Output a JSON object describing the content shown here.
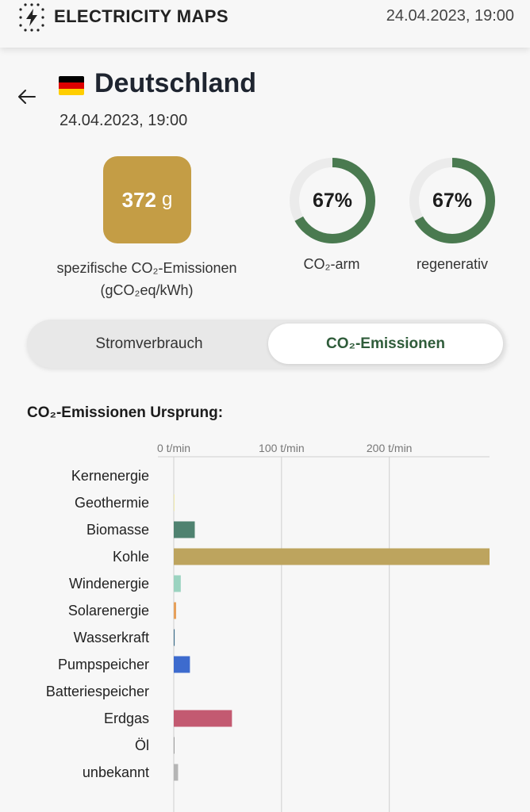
{
  "header": {
    "brand": "ELECTRICITY MAPS",
    "datetime": "24.04.2023, 19:00",
    "logo_icon": "lightning-bolt-icon"
  },
  "zone": {
    "name": "Deutschland",
    "datetime": "24.04.2023, 19:00",
    "flag_colors": [
      "#000000",
      "#dd0000",
      "#ffce00"
    ],
    "back_icon": "arrow-left-icon"
  },
  "intensity": {
    "value": "372",
    "unit": "g",
    "label_line1": "spezifische CO₂-Emissionen",
    "label_line2": "(gCO₂eq/kWh)",
    "color": "#c49d45"
  },
  "gauges": [
    {
      "value": "67%",
      "fraction": 0.67,
      "label": "CO₂-arm",
      "color": "#4a7a50"
    },
    {
      "value": "67%",
      "fraction": 0.67,
      "label": "regenerativ",
      "color": "#4a7a50"
    }
  ],
  "toggle": {
    "options": [
      "Stromverbrauch",
      "CO₂-Emissionen"
    ],
    "selected": "CO₂-Emissionen"
  },
  "section_title": "CO₂-Emissionen Ursprung:",
  "chart_data": {
    "type": "bar",
    "orientation": "horizontal",
    "x_unit": "t/min",
    "xlim": [
      0,
      293
    ],
    "x_ticks": [
      0,
      100,
      200
    ],
    "x_tick_labels": [
      "0 t/min",
      "100 t/min",
      "200 t/min"
    ],
    "grid": true,
    "categories": [
      "Kernenergie",
      "Geothermie",
      "Biomasse",
      "Kohle",
      "Windenergie",
      "Solarenergie",
      "Wasserkraft",
      "Pumpspeicher",
      "Batteriespeicher",
      "Erdgas",
      "Öl",
      "unbekannt"
    ],
    "values": [
      0,
      0.3,
      19.5,
      293,
      6.5,
      2.2,
      0.8,
      15,
      0,
      54,
      0.6,
      4
    ],
    "colors": [
      "#aeb800",
      "#f1e24a",
      "#4f8270",
      "#bda45e",
      "#9bd3c0",
      "#e6a05a",
      "#3c6d8a",
      "#3d6bce",
      "#d8d8d8",
      "#c35a71",
      "#8c8c8c",
      "#b5b5b5"
    ]
  }
}
